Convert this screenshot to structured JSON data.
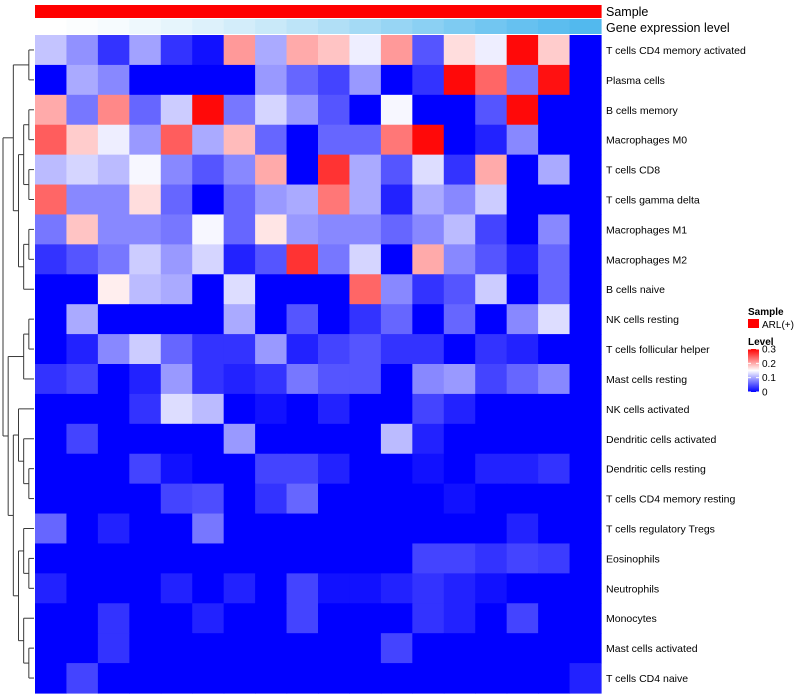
{
  "chart_data": {
    "type": "heatmap",
    "title": "",
    "color_scale": {
      "low": "#0000ff",
      "mid": "#ffffff",
      "high": "#ff0000",
      "min": 0,
      "mid_value": 0.15,
      "max": 0.3
    },
    "annotations": [
      {
        "name": "Sample",
        "colors": [
          "#ff0000",
          "#ff0000",
          "#ff0000",
          "#ff0000",
          "#ff0000",
          "#ff0000",
          "#ff0000",
          "#ff0000",
          "#ff0000",
          "#ff0000",
          "#ff0000",
          "#ff0000",
          "#ff0000",
          "#ff0000",
          "#ff0000",
          "#ff0000",
          "#ff0000",
          "#ff0000",
          "#ff0000",
          "#ff0000",
          "#ff0000",
          "#ff0000",
          "#ff0000",
          "#ff0000",
          "#ff0000",
          "#ff0000",
          "#ff0000",
          "#ff0000",
          "#ff0000",
          "#ff0000",
          "#ff0000",
          "#ff0000",
          "#ff0000",
          "#ff0000",
          "#ff0000",
          "#ff0000",
          "#ff0000",
          "#ff0000",
          "#ff0000",
          "#ff0000",
          "#ff0000",
          "#ff0000",
          "#ff0000",
          "#ff0000",
          "#ff0000",
          "#ff0000",
          "#ff0000",
          "#ff0000",
          "#ff0000",
          "#ff0000",
          "#ff0000",
          "#ff0000",
          "#ff0000",
          "#ff0000",
          "#ff0000",
          "#ff0000",
          "#ff0000",
          "#ff0000",
          "#ff0000",
          "#ff0000",
          "#ff0000",
          "#ff0000",
          "#ff0000",
          "#ff0000",
          "#ff0000",
          "#ff0000",
          "#ff0000",
          "#ff0000",
          "#ff0000",
          "#ff0000",
          "#ff0000",
          "#ff0000",
          "#ff0000",
          "#ff0000",
          "#ff0000",
          "#ff0000",
          "#ff0000",
          "#ff0000",
          "#ff0000",
          "#ff0000",
          "#ff0000",
          "#ff0000",
          "#ff0000",
          "#ff0000",
          "#ff0000",
          "#ff0000",
          "#ff0000",
          "#ff0000",
          "#ff0000",
          "#ff0000",
          "#ff0000",
          "#ff0000",
          "#ff0000",
          "#ff0000",
          "#ff0000",
          "#ff0000",
          "#ff0000",
          "#ff0000",
          "#ff0000",
          "#ff0000",
          "#ff0000",
          "#ff0000",
          "#ff0000",
          "#ff0000",
          "#ff0000",
          "#ff0000",
          "#ff0000",
          "#ff0000",
          "#ff0000",
          "#ff0000",
          "#ff0000",
          "#ff0000",
          "#ff0000",
          "#ff0000",
          "#ff0000",
          "#ff0000",
          "#ff0000",
          "#ff0000",
          "#ff0000",
          "#ff0000",
          "#ff0000",
          "#ff0000",
          "#ff0000",
          "#ff0000",
          "#ff0000",
          "#ff0000",
          "#ff0000",
          "#ff0000",
          "#ff0000",
          "#ff0000",
          "#ff0000",
          "#ff0000",
          "#ff0000",
          "#ff0000",
          "#ff0000",
          "#ff0000",
          "#ff0000",
          "#ff0000",
          "#ff0000",
          "#ff0000",
          "#ff0000",
          "#ff0000",
          "#ff0000",
          "#ff0000",
          "#ff0000",
          "#ff0000",
          "#ff0000",
          "#ff0000",
          "#ff0000",
          "#ff0000",
          "#ff0000",
          "#ff0000",
          "#ff0000",
          "#ff0000",
          "#ff0000",
          "#ff0000",
          "#ff0000",
          "#ff0000",
          "#ff0000",
          "#ff0000",
          "#ff0000",
          "#ff0000",
          "#ff0000",
          "#ff0000",
          "#ff0000",
          "#ff0000",
          "#ff0000",
          "#ff0000",
          "#ff0000",
          "#ff0000",
          "#ff0000",
          "#ff0000",
          "#ff0000",
          "#ff0000",
          "#ff0000",
          "#ff0000",
          "#ff0000",
          "#ff0000",
          "#ff0000",
          "#ff0000"
        ]
      },
      {
        "name": "Gene expression level",
        "colors": [
          "#ffffff",
          "#fbfdfe",
          "#f6fbfe",
          "#eef8fd",
          "#e6f5fc",
          "#ddf1fb",
          "#d3edfa",
          "#c9e9f9",
          "#bde4f8",
          "#b1dff6",
          "#a4daf5",
          "#97d5f4",
          "#8bd0f3",
          "#7ecbf2",
          "#72c6f1",
          "#66c1f0",
          "#5cbdef",
          "#52b9ee"
        ]
      }
    ],
    "columns": 18,
    "rows": [
      "T cells CD4 memory activated",
      "Plasma cells",
      "B cells memory",
      "Macrophages M0",
      "T cells CD8",
      "T cells gamma delta",
      "Macrophages M1",
      "Macrophages M2",
      "B cells naive",
      "NK cells resting",
      "T cells follicular helper",
      "Mast cells resting",
      "NK cells activated",
      "Dendritic cells activated",
      "Dendritic cells resting",
      "T cells CD4 memory resting",
      "T cells regulatory  Tregs",
      "Eosinophils",
      "Neutrophils",
      "Monocytes",
      "Mast cells activated",
      "T cells CD4 naive"
    ],
    "values": [
      [
        0.115,
        0.085,
        0.03,
        0.095,
        0.03,
        0.01,
        0.21,
        0.1,
        0.2,
        0.185,
        0.14,
        0.21,
        0.05,
        0.17,
        0.14,
        0.295,
        0.18,
        0.0
      ],
      [
        0.0,
        0.1,
        0.08,
        0.0,
        0.0,
        0.0,
        0.0,
        0.09,
        0.06,
        0.04,
        0.09,
        0.0,
        0.03,
        0.295,
        0.24,
        0.07,
        0.29,
        0.0
      ],
      [
        0.2,
        0.07,
        0.22,
        0.06,
        0.12,
        0.295,
        0.07,
        0.125,
        0.09,
        0.05,
        0.0,
        0.145,
        0.0,
        0.0,
        0.05,
        0.295,
        0.0,
        0.0
      ],
      [
        0.245,
        0.18,
        0.14,
        0.09,
        0.245,
        0.1,
        0.19,
        0.06,
        0.0,
        0.06,
        0.06,
        0.23,
        0.295,
        0.0,
        0.02,
        0.08,
        0.0,
        0.0
      ],
      [
        0.11,
        0.125,
        0.11,
        0.145,
        0.08,
        0.05,
        0.08,
        0.2,
        0.0,
        0.27,
        0.1,
        0.05,
        0.13,
        0.03,
        0.2,
        0.0,
        0.1,
        0.0
      ],
      [
        0.24,
        0.08,
        0.08,
        0.17,
        0.06,
        0.0,
        0.06,
        0.09,
        0.1,
        0.23,
        0.1,
        0.02,
        0.1,
        0.08,
        0.12,
        0.0,
        0.0,
        0.0
      ],
      [
        0.07,
        0.185,
        0.08,
        0.08,
        0.07,
        0.145,
        0.06,
        0.165,
        0.09,
        0.08,
        0.08,
        0.06,
        0.08,
        0.11,
        0.04,
        0.0,
        0.08,
        0.0
      ],
      [
        0.03,
        0.05,
        0.07,
        0.12,
        0.09,
        0.125,
        0.02,
        0.05,
        0.27,
        0.07,
        0.125,
        0.0,
        0.2,
        0.08,
        0.05,
        0.02,
        0.06,
        0.0
      ],
      [
        0.0,
        0.0,
        0.16,
        0.11,
        0.1,
        0.0,
        0.13,
        0.0,
        0.0,
        0.0,
        0.24,
        0.08,
        0.03,
        0.05,
        0.12,
        0.0,
        0.06,
        0.0
      ],
      [
        0.0,
        0.1,
        0.0,
        0.0,
        0.0,
        0.0,
        0.1,
        0.0,
        0.05,
        0.0,
        0.03,
        0.06,
        0.0,
        0.06,
        0.0,
        0.08,
        0.13,
        0.0
      ],
      [
        0.0,
        0.02,
        0.08,
        0.12,
        0.06,
        0.03,
        0.03,
        0.09,
        0.02,
        0.04,
        0.05,
        0.03,
        0.03,
        0.0,
        0.03,
        0.02,
        0.0,
        0.0
      ],
      [
        0.03,
        0.04,
        0.0,
        0.02,
        0.09,
        0.03,
        0.02,
        0.03,
        0.07,
        0.05,
        0.05,
        0.0,
        0.08,
        0.09,
        0.04,
        0.06,
        0.08,
        0.0
      ],
      [
        0.0,
        0.0,
        0.0,
        0.03,
        0.13,
        0.11,
        0.0,
        0.01,
        0.0,
        0.02,
        0.0,
        0.0,
        0.04,
        0.02,
        0.0,
        0.0,
        0.0,
        0.0
      ],
      [
        0.0,
        0.04,
        0.0,
        0.0,
        0.0,
        0.0,
        0.09,
        0.0,
        0.0,
        0.0,
        0.0,
        0.11,
        0.02,
        0.0,
        0.0,
        0.0,
        0.0,
        0.0
      ],
      [
        0.0,
        0.0,
        0.0,
        0.04,
        0.01,
        0.0,
        0.0,
        0.04,
        0.04,
        0.02,
        0.0,
        0.0,
        0.01,
        0.0,
        0.02,
        0.02,
        0.03,
        0.0
      ],
      [
        0.0,
        0.0,
        0.0,
        0.0,
        0.04,
        0.045,
        0.0,
        0.03,
        0.06,
        0.0,
        0.0,
        0.0,
        0.0,
        0.01,
        0.0,
        0.0,
        0.0,
        0.0
      ],
      [
        0.06,
        0.0,
        0.02,
        0.0,
        0.0,
        0.07,
        0.0,
        0.0,
        0.0,
        0.0,
        0.0,
        0.0,
        0.0,
        0.0,
        0.0,
        0.02,
        0.0,
        0.0
      ],
      [
        0.0,
        0.0,
        0.0,
        0.0,
        0.0,
        0.0,
        0.0,
        0.0,
        0.0,
        0.0,
        0.0,
        0.0,
        0.04,
        0.04,
        0.03,
        0.04,
        0.035,
        0.0
      ],
      [
        0.02,
        0.0,
        0.0,
        0.0,
        0.02,
        0.0,
        0.02,
        0.0,
        0.04,
        0.01,
        0.01,
        0.02,
        0.03,
        0.02,
        0.01,
        0.0,
        0.0,
        0.0
      ],
      [
        0.0,
        0.0,
        0.03,
        0.0,
        0.0,
        0.02,
        0.0,
        0.0,
        0.04,
        0.0,
        0.0,
        0.0,
        0.03,
        0.02,
        0.0,
        0.04,
        0.0,
        0.0
      ],
      [
        0.0,
        0.0,
        0.03,
        0.0,
        0.0,
        0.0,
        0.0,
        0.0,
        0.0,
        0.0,
        0.0,
        0.04,
        0.0,
        0.0,
        0.0,
        0.0,
        0.0,
        0.0
      ],
      [
        0.0,
        0.04,
        0.0,
        0.0,
        0.0,
        0.0,
        0.0,
        0.0,
        0.0,
        0.0,
        0.0,
        0.0,
        0.0,
        0.0,
        0.0,
        0.0,
        0.0,
        0.02
      ]
    ],
    "legend": {
      "sample_title": "Sample",
      "sample_entry": "ARL(+)",
      "sample_color": "#ff0000",
      "level_title": "Level",
      "level_ticks": [
        "0.3",
        "0.2",
        "0.1",
        "0"
      ],
      "level_tick_values": [
        0.3,
        0.2,
        0.1,
        0.0
      ]
    }
  }
}
